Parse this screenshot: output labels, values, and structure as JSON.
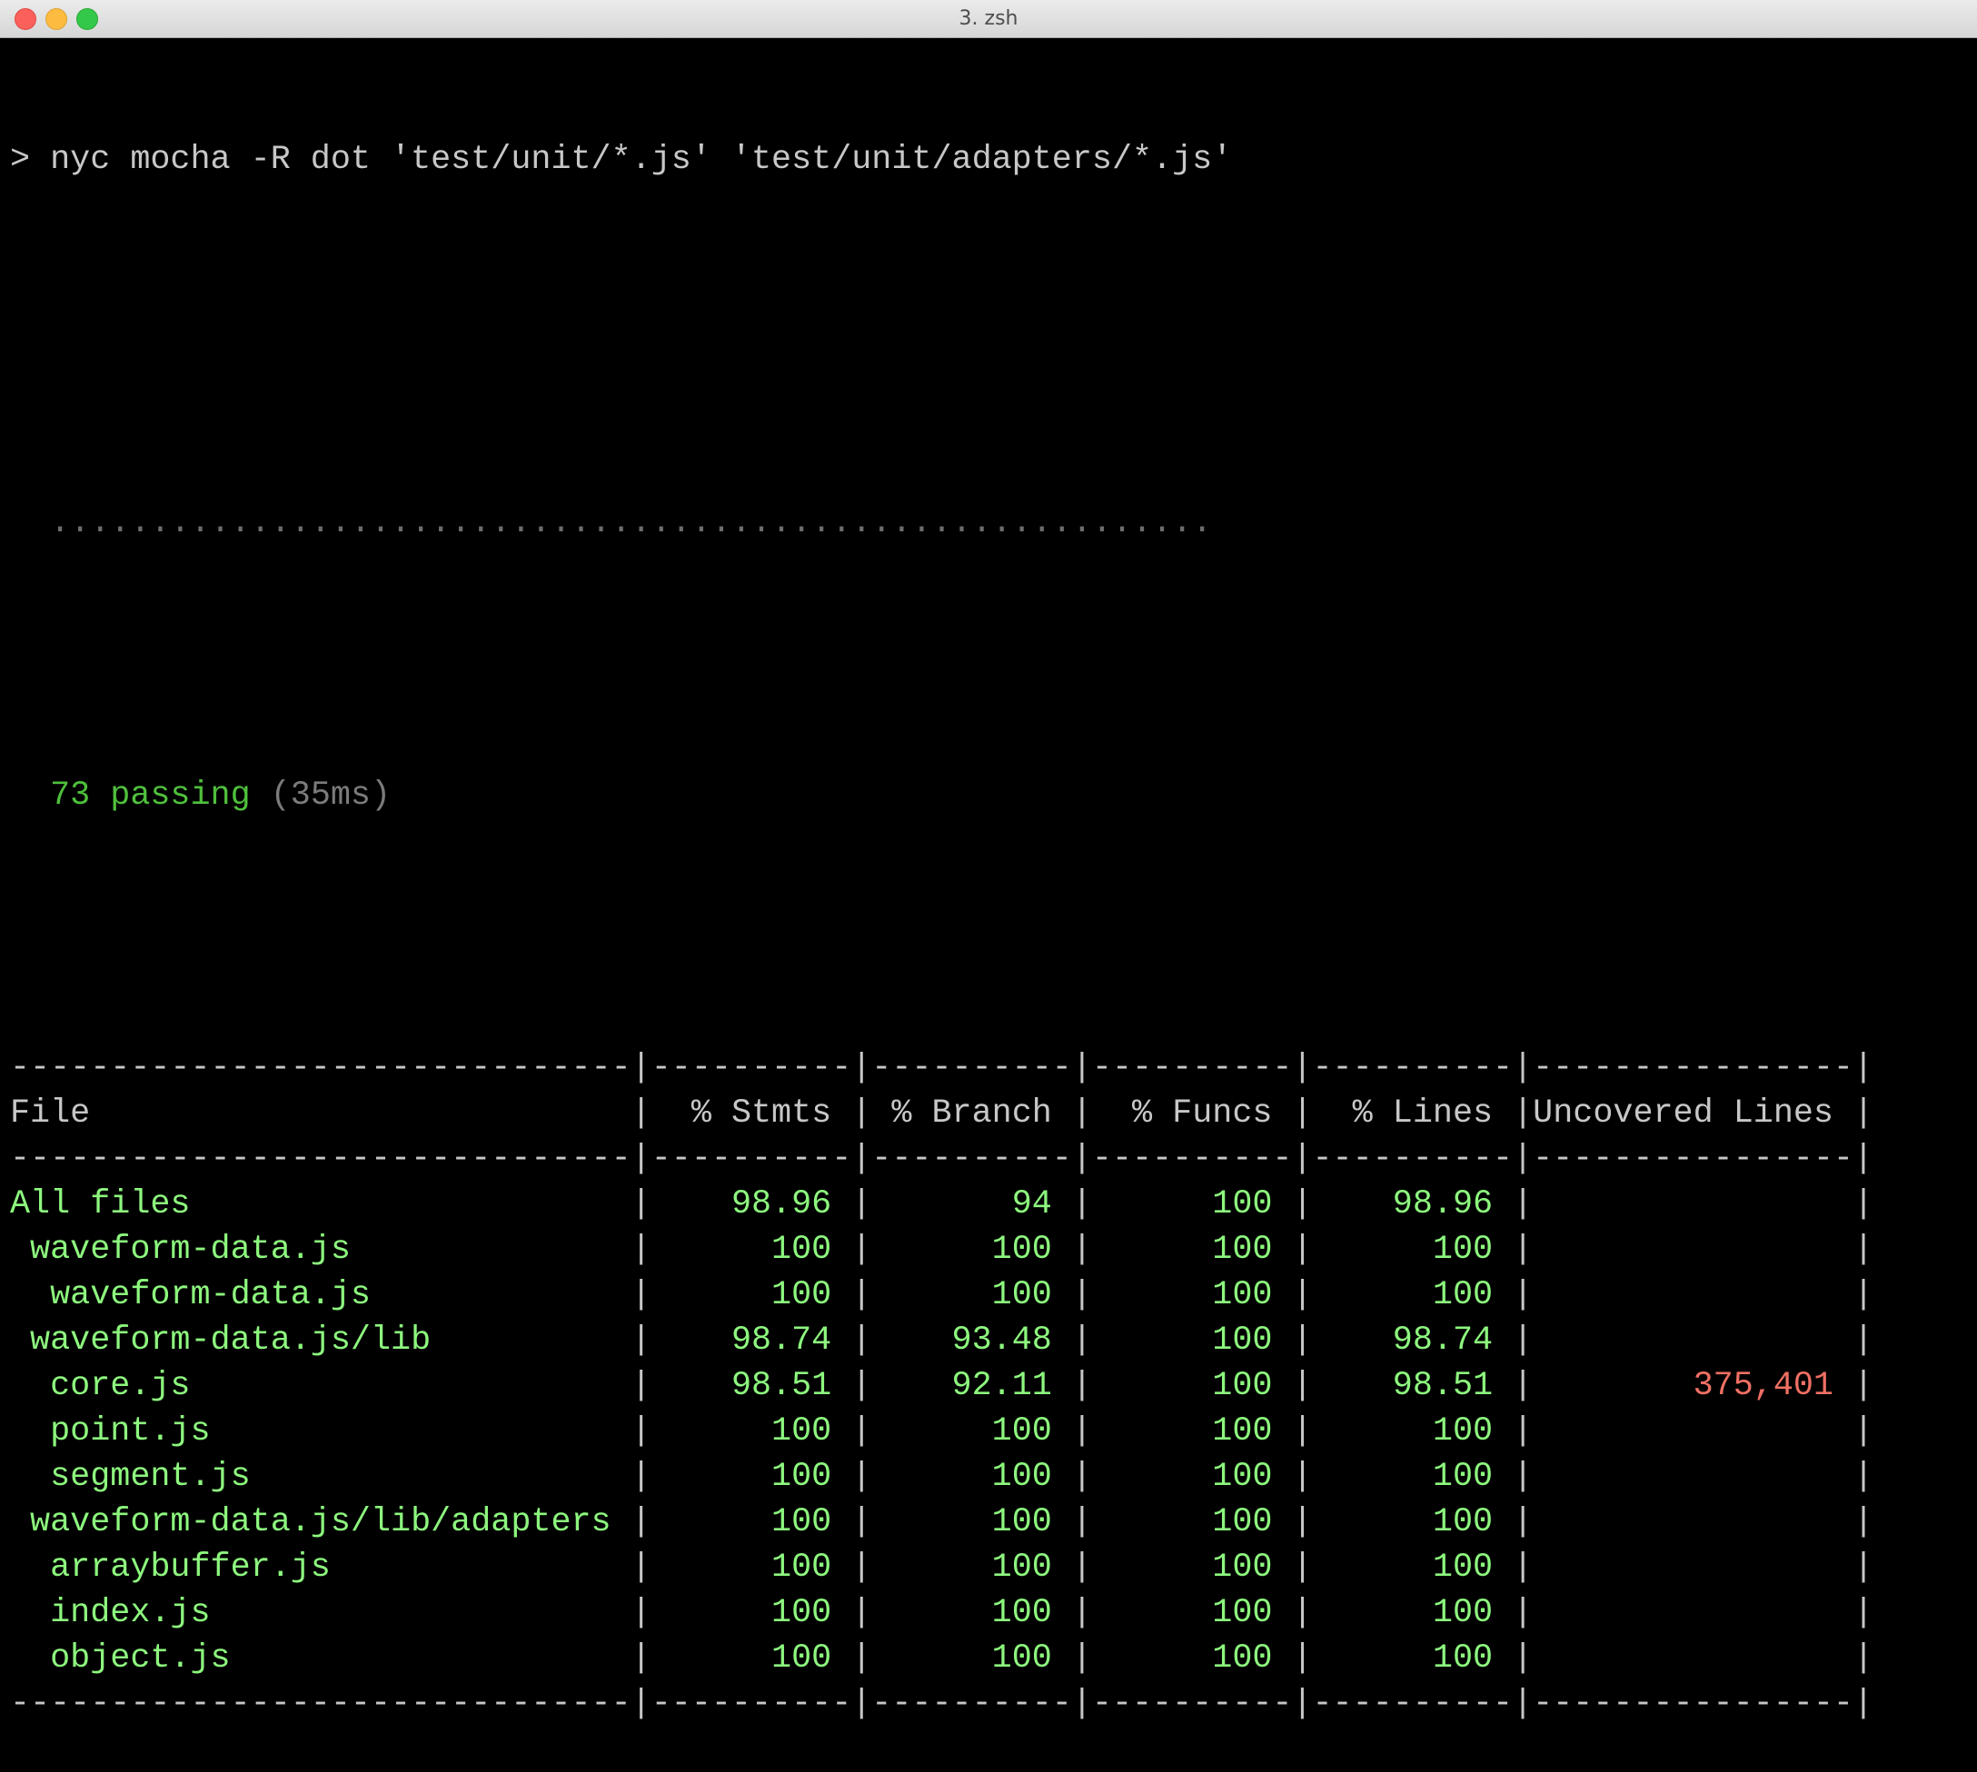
{
  "window": {
    "title": "3. zsh"
  },
  "terminal": {
    "command": "> nyc mocha -R dot 'test/unit/*.js' 'test/unit/adapters/*.js'",
    "dots": "  ..........................................................",
    "passing": "  73 passing",
    "duration": " (35ms)"
  },
  "coverage": {
    "headers": [
      "File",
      "% Stmts",
      "% Branch",
      "% Funcs",
      "% Lines",
      "Uncovered Lines"
    ],
    "rows": [
      {
        "file": "All files",
        "stmts": "98.96",
        "branch": "94",
        "funcs": "100",
        "lines": "98.96",
        "uncovered": ""
      },
      {
        "file": " waveform-data.js",
        "stmts": "100",
        "branch": "100",
        "funcs": "100",
        "lines": "100",
        "uncovered": ""
      },
      {
        "file": "  waveform-data.js",
        "stmts": "100",
        "branch": "100",
        "funcs": "100",
        "lines": "100",
        "uncovered": ""
      },
      {
        "file": " waveform-data.js/lib",
        "stmts": "98.74",
        "branch": "93.48",
        "funcs": "100",
        "lines": "98.74",
        "uncovered": ""
      },
      {
        "file": "  core.js",
        "stmts": "98.51",
        "branch": "92.11",
        "funcs": "100",
        "lines": "98.51",
        "uncovered": "375,401"
      },
      {
        "file": "  point.js",
        "stmts": "100",
        "branch": "100",
        "funcs": "100",
        "lines": "100",
        "uncovered": ""
      },
      {
        "file": "  segment.js",
        "stmts": "100",
        "branch": "100",
        "funcs": "100",
        "lines": "100",
        "uncovered": ""
      },
      {
        "file": " waveform-data.js/lib/adapters",
        "stmts": "100",
        "branch": "100",
        "funcs": "100",
        "lines": "100",
        "uncovered": ""
      },
      {
        "file": "  arraybuffer.js",
        "stmts": "100",
        "branch": "100",
        "funcs": "100",
        "lines": "100",
        "uncovered": ""
      },
      {
        "file": "  index.js",
        "stmts": "100",
        "branch": "100",
        "funcs": "100",
        "lines": "100",
        "uncovered": ""
      },
      {
        "file": "  object.js",
        "stmts": "100",
        "branch": "100",
        "funcs": "100",
        "lines": "100",
        "uncovered": ""
      }
    ]
  },
  "colors": {
    "pass": "#4fc03c",
    "value": "#8df77e",
    "uncovered": "#f07064",
    "text": "#c7c7c7"
  }
}
